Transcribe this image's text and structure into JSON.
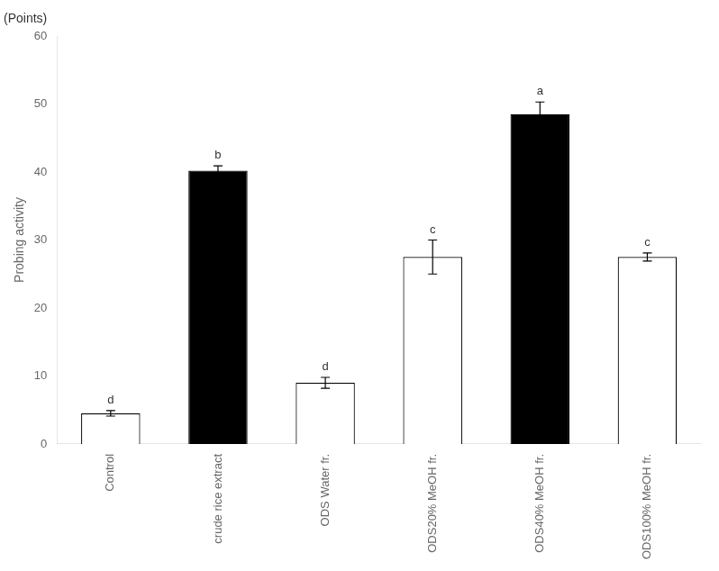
{
  "chart_data": {
    "type": "bar",
    "categories": [
      "Control",
      "crude rice extract",
      "ODS Water fr.",
      "ODS20% MeOH fr.",
      "ODS40% MeOH fr.",
      "ODS100% MeOH fr."
    ],
    "values": [
      4.5,
      40.2,
      9.0,
      27.5,
      48.5,
      27.5
    ],
    "errors": [
      0.4,
      0.7,
      0.8,
      2.5,
      1.8,
      0.6
    ],
    "colors": [
      "white",
      "black",
      "white",
      "white",
      "black",
      "white"
    ],
    "ylabel": "Probing activity",
    "annotations": [
      {
        "text": "(Points)"
      },
      {
        "text": "d",
        "category": "Control"
      },
      {
        "text": "b",
        "category": "crude rice extract"
      },
      {
        "text": "d",
        "category": "ODS Water fr."
      },
      {
        "text": "c",
        "category": "ODS20% MeOH fr."
      },
      {
        "text": "a",
        "category": "ODS40% MeOH fr."
      },
      {
        "text": "c",
        "category": "ODS100% MeOH fr."
      }
    ],
    "ylim": [
      0,
      60
    ],
    "yticks": [
      0,
      10,
      20,
      30,
      40,
      50,
      60
    ],
    "grid": false
  }
}
